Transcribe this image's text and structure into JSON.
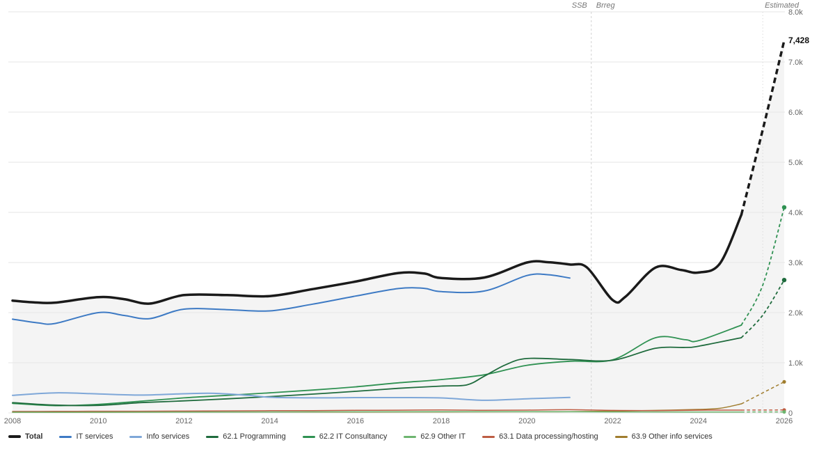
{
  "annotations": {
    "source_left": "SSB",
    "source_right": "Brreg",
    "estimated": "Estimated",
    "total_end_value": "7,428"
  },
  "chart_data": {
    "type": "line",
    "title": "",
    "xlabel": "",
    "ylabel": "",
    "x_range": [
      2008,
      2026
    ],
    "y_range": [
      0,
      8000
    ],
    "grid": true,
    "legend_position": "bottom-left",
    "x_ticks": [
      2008,
      2010,
      2012,
      2014,
      2016,
      2018,
      2020,
      2022,
      2024,
      2026
    ],
    "y_ticks": [
      {
        "value": 0,
        "label": "0"
      },
      {
        "value": 1000,
        "label": "1.0k"
      },
      {
        "value": 2000,
        "label": "2.0k"
      },
      {
        "value": 3000,
        "label": "3.0k"
      },
      {
        "value": 4000,
        "label": "4.0k"
      },
      {
        "value": 5000,
        "label": "5.0k"
      },
      {
        "value": 6000,
        "label": "6.0k"
      },
      {
        "value": 7000,
        "label": "7.0k"
      },
      {
        "value": 8000,
        "label": "8.0k"
      }
    ],
    "dividers": [
      {
        "x": 2021.5,
        "style": "dashed"
      },
      {
        "x": 2025.5,
        "style": "dotted"
      }
    ],
    "estimate_start": 2025,
    "series": [
      {
        "name": "Total",
        "color": "#1a1a1a",
        "width": 3.5,
        "area": true,
        "area_color": "#f4f4f4",
        "dashed_estimate": true,
        "end_dot": false,
        "legend_bold": true,
        "points": [
          [
            2008,
            2240
          ],
          [
            2008.5,
            2205
          ],
          [
            2009,
            2200
          ],
          [
            2010,
            2310
          ],
          [
            2010.6,
            2270
          ],
          [
            2011.2,
            2180
          ],
          [
            2012,
            2350
          ],
          [
            2013,
            2350
          ],
          [
            2014,
            2330
          ],
          [
            2015,
            2470
          ],
          [
            2016,
            2620
          ],
          [
            2017,
            2790
          ],
          [
            2017.6,
            2780
          ],
          [
            2018,
            2690
          ],
          [
            2019,
            2700
          ],
          [
            2020,
            3000
          ],
          [
            2020.5,
            3005
          ],
          [
            2021,
            2960
          ],
          [
            2021.4,
            2900
          ],
          [
            2022,
            2250
          ],
          [
            2022.3,
            2320
          ],
          [
            2023,
            2900
          ],
          [
            2023.6,
            2850
          ],
          [
            2024,
            2800
          ],
          [
            2024.5,
            2980
          ],
          [
            2025,
            3950
          ],
          [
            2025.5,
            5650
          ],
          [
            2026,
            7428
          ]
        ]
      },
      {
        "name": "IT services",
        "color": "#3d7ac4",
        "width": 2,
        "area": false,
        "dashed_estimate": false,
        "end_dot": false,
        "legend_bold": false,
        "points": [
          [
            2008,
            1870
          ],
          [
            2008.6,
            1795
          ],
          [
            2009,
            1785
          ],
          [
            2010,
            2000
          ],
          [
            2010.6,
            1945
          ],
          [
            2011.2,
            1880
          ],
          [
            2012,
            2070
          ],
          [
            2013,
            2060
          ],
          [
            2014,
            2035
          ],
          [
            2015,
            2170
          ],
          [
            2016,
            2330
          ],
          [
            2017,
            2480
          ],
          [
            2017.6,
            2485
          ],
          [
            2018,
            2420
          ],
          [
            2019,
            2430
          ],
          [
            2020,
            2740
          ],
          [
            2020.5,
            2755
          ],
          [
            2021,
            2690
          ]
        ]
      },
      {
        "name": "Info services",
        "color": "#7ea7d8",
        "width": 2,
        "area": false,
        "dashed_estimate": false,
        "end_dot": false,
        "legend_bold": false,
        "points": [
          [
            2008,
            350
          ],
          [
            2009,
            400
          ],
          [
            2010,
            378
          ],
          [
            2011,
            355
          ],
          [
            2012,
            382
          ],
          [
            2012.7,
            390
          ],
          [
            2013.5,
            350
          ],
          [
            2014,
            312
          ],
          [
            2015,
            300
          ],
          [
            2016,
            305
          ],
          [
            2017,
            305
          ],
          [
            2018,
            298
          ],
          [
            2019,
            252
          ],
          [
            2020,
            282
          ],
          [
            2021,
            308
          ]
        ]
      },
      {
        "name": "62.1 Programming",
        "color": "#1f6b3d",
        "width": 1.8,
        "area": false,
        "dashed_estimate": true,
        "end_dot": true,
        "legend_bold": false,
        "points": [
          [
            2008,
            205
          ],
          [
            2009,
            155
          ],
          [
            2010,
            150
          ],
          [
            2011,
            205
          ],
          [
            2012,
            240
          ],
          [
            2013,
            280
          ],
          [
            2014,
            325
          ],
          [
            2015,
            375
          ],
          [
            2016,
            430
          ],
          [
            2017,
            490
          ],
          [
            2018,
            535
          ],
          [
            2018.6,
            560
          ],
          [
            2019,
            730
          ],
          [
            2019.5,
            960
          ],
          [
            2020,
            1085
          ],
          [
            2021,
            1065
          ],
          [
            2022,
            1050
          ],
          [
            2023,
            1290
          ],
          [
            2023.7,
            1305
          ],
          [
            2024,
            1330
          ],
          [
            2025,
            1500
          ],
          [
            2025.5,
            1950
          ],
          [
            2026,
            2650
          ]
        ]
      },
      {
        "name": "62.2 IT Consultancy",
        "color": "#2f9152",
        "width": 1.8,
        "area": false,
        "dashed_estimate": true,
        "end_dot": true,
        "legend_bold": false,
        "points": [
          [
            2008,
            190
          ],
          [
            2009,
            145
          ],
          [
            2010,
            170
          ],
          [
            2011,
            235
          ],
          [
            2012,
            300
          ],
          [
            2013,
            350
          ],
          [
            2014,
            400
          ],
          [
            2015,
            455
          ],
          [
            2016,
            520
          ],
          [
            2017,
            600
          ],
          [
            2018,
            665
          ],
          [
            2019,
            760
          ],
          [
            2020,
            950
          ],
          [
            2021,
            1030
          ],
          [
            2022,
            1060
          ],
          [
            2023,
            1500
          ],
          [
            2023.7,
            1460
          ],
          [
            2024,
            1440
          ],
          [
            2025,
            1750
          ],
          [
            2025.5,
            2550
          ],
          [
            2026,
            4100
          ]
        ]
      },
      {
        "name": "62.9 Other IT",
        "color": "#6db56f",
        "width": 1.5,
        "area": false,
        "dashed_estimate": true,
        "end_dot": true,
        "legend_bold": false,
        "points": [
          [
            2008,
            15
          ],
          [
            2010,
            15
          ],
          [
            2012,
            18
          ],
          [
            2014,
            20
          ],
          [
            2016,
            22
          ],
          [
            2018,
            24
          ],
          [
            2020,
            25
          ],
          [
            2022,
            20
          ],
          [
            2024,
            18
          ],
          [
            2025,
            18
          ],
          [
            2026,
            20
          ]
        ]
      },
      {
        "name": "63.1 Data processing/hosting",
        "color": "#bd5d43",
        "width": 1.5,
        "area": false,
        "dashed_estimate": true,
        "end_dot": true,
        "legend_bold": false,
        "points": [
          [
            2008,
            30
          ],
          [
            2009,
            30
          ],
          [
            2010,
            33
          ],
          [
            2011,
            34
          ],
          [
            2012,
            36
          ],
          [
            2013,
            40
          ],
          [
            2014,
            44
          ],
          [
            2015,
            46
          ],
          [
            2016,
            52
          ],
          [
            2017,
            54
          ],
          [
            2018,
            60
          ],
          [
            2019,
            52
          ],
          [
            2020,
            56
          ],
          [
            2021,
            64
          ],
          [
            2022,
            50
          ],
          [
            2023,
            46
          ],
          [
            2024,
            54
          ],
          [
            2025,
            56
          ],
          [
            2026,
            58
          ]
        ]
      },
      {
        "name": "63.9 Other info services",
        "color": "#a07d2e",
        "width": 1.5,
        "area": false,
        "dashed_estimate": true,
        "end_dot": true,
        "legend_bold": false,
        "points": [
          [
            2008,
            12
          ],
          [
            2010,
            13
          ],
          [
            2012,
            15
          ],
          [
            2014,
            16
          ],
          [
            2016,
            18
          ],
          [
            2018,
            20
          ],
          [
            2020,
            22
          ],
          [
            2021,
            25
          ],
          [
            2022,
            35
          ],
          [
            2023,
            50
          ],
          [
            2024,
            70
          ],
          [
            2024.5,
            92
          ],
          [
            2025,
            180
          ],
          [
            2026,
            620
          ]
        ]
      }
    ]
  }
}
